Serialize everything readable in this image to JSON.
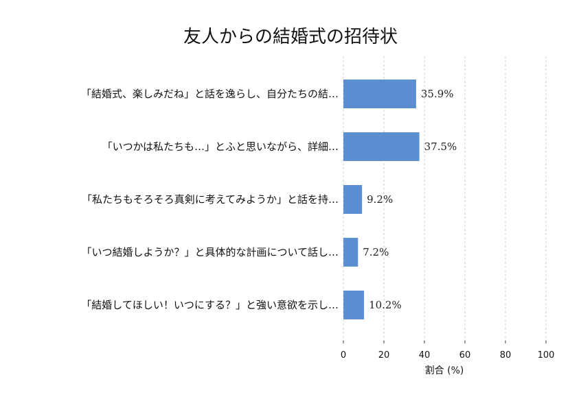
{
  "chart_data": {
    "type": "bar",
    "orientation": "horizontal",
    "title": "友人からの結婚式の招待状",
    "categories": [
      "「結婚式、楽しみだね」と話を逸らし、自分たちの結…",
      "「いつかは私たちも…」とふと思いながら、詳細…",
      "「私たちもそろそろ真剣に考えてみようか」と話を持…",
      "「いつ結婚しようか？」と具体的な計画について話し…",
      "「結婚してほしい！いつにする？」と強い意欲を示し…"
    ],
    "values": [
      35.9,
      37.5,
      9.2,
      7.2,
      10.2
    ],
    "value_labels": [
      "35.9%",
      "37.5%",
      "9.2%",
      "7.2%",
      "10.2%"
    ],
    "xlabel": "割合 (%)",
    "ylabel": "",
    "xlim": [
      0,
      100
    ],
    "xticks": [
      "0",
      "20",
      "40",
      "60",
      "80",
      "100"
    ],
    "grid": true,
    "bar_color": "#5b8fd2"
  }
}
